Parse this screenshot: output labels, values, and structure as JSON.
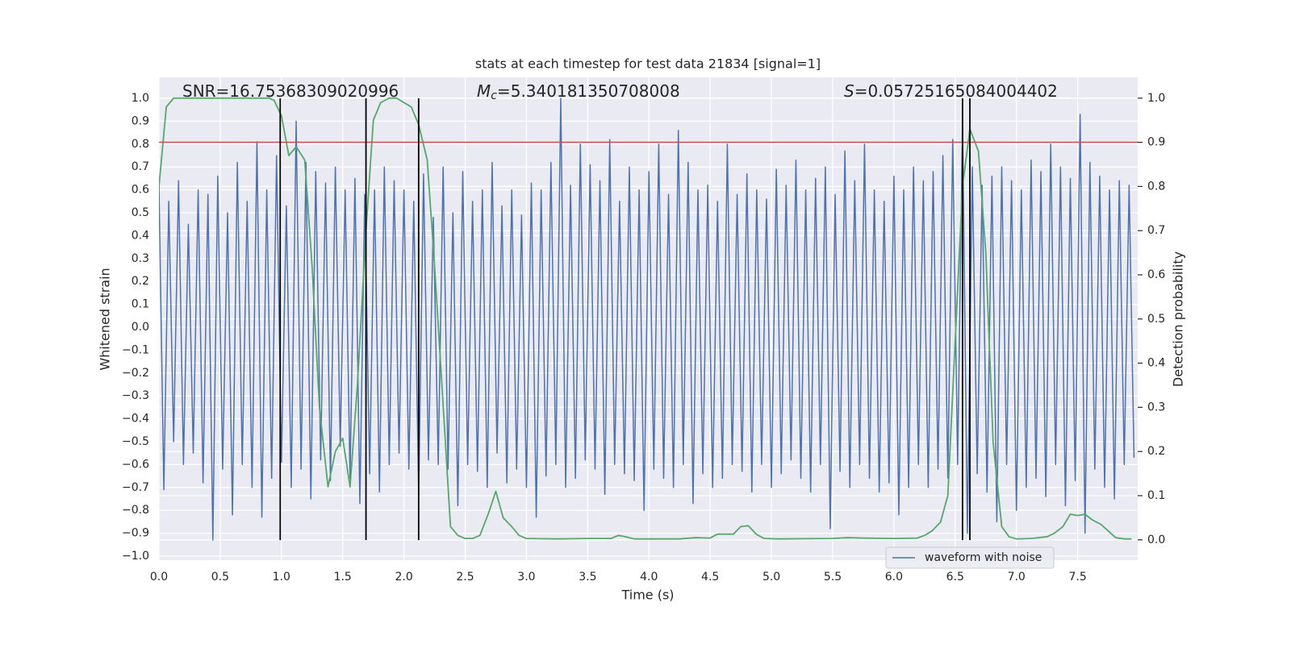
{
  "chart_data": {
    "type": "line",
    "title": "stats at each timestep for test data 21834 [signal=1]",
    "xlabel": "Time (s)",
    "ylabel": "Whitened strain",
    "y2label": "Detection probability",
    "xlim": [
      0,
      7.99
    ],
    "ylim": [
      -1.0176,
      1.0915
    ],
    "y2lim": [
      -0.046,
      1.047
    ],
    "xticks": [
      {
        "value": 0,
        "label": "0.0"
      },
      0.5,
      {
        "value": 1,
        "label": "1.0"
      },
      1.5,
      {
        "value": 2,
        "label": "2.0"
      },
      2.5,
      {
        "value": 3,
        "label": "3.0"
      },
      3.5,
      {
        "value": 4,
        "label": "4.0"
      },
      4.5,
      {
        "value": 5,
        "label": "5.0"
      },
      5.5,
      {
        "value": 6,
        "label": "6.0"
      },
      6.5,
      {
        "value": 7,
        "label": "7.0"
      },
      7.5
    ],
    "yticks": [
      {
        "value": -1,
        "label": "−1.0"
      },
      {
        "value": -0.9,
        "label": "−0.9"
      },
      {
        "value": -0.8,
        "label": "−0.8"
      },
      {
        "value": -0.7,
        "label": "−0.7"
      },
      {
        "value": -0.6,
        "label": "−0.6"
      },
      {
        "value": -0.5,
        "label": "−0.5"
      },
      {
        "value": -0.4,
        "label": "−0.4"
      },
      {
        "value": -0.3,
        "label": "−0.3"
      },
      {
        "value": -0.2,
        "label": "−0.2"
      },
      {
        "value": -0.1,
        "label": "−0.1"
      },
      {
        "value": 0,
        "label": "0.0"
      },
      0.1,
      0.2,
      0.3,
      0.4,
      0.5,
      0.6,
      0.7,
      0.8,
      0.9,
      {
        "value": 1,
        "label": "1.0"
      }
    ],
    "y2ticks": [
      {
        "value": 0,
        "label": "0.0"
      },
      0.1,
      0.2,
      0.3,
      0.4,
      0.5,
      0.6,
      0.7,
      0.8,
      0.9,
      {
        "value": 1,
        "label": "1.0"
      }
    ],
    "grid": true,
    "legend": "lower right",
    "annotations": [
      {
        "text": "SNR=16.75368309020996"
      },
      {
        "symbol": "M",
        "subscript": "c",
        "text": "=5.340181350708008"
      },
      {
        "symbol": "S",
        "text": "=0.05725165084004402"
      }
    ],
    "threshold": {
      "value": 0.9,
      "axis": "y2",
      "color": "#c44e52"
    },
    "vlines": {
      "x": [
        0.99,
        1.69,
        2.12,
        6.56,
        6.62
      ],
      "ymin": -0.93,
      "ymax": 1.0,
      "color": "#000000"
    },
    "series": [
      {
        "name": "waveform with noise",
        "color": "#4c72b0",
        "x": [
          0,
          0.04,
          0.08,
          0.12,
          0.16,
          0.2,
          0.24,
          0.28,
          0.32,
          0.36,
          0.4,
          0.44,
          0.48,
          0.52,
          0.56,
          0.6,
          0.64,
          0.68,
          0.72,
          0.76,
          0.8,
          0.84,
          0.88,
          0.92,
          0.96,
          1,
          1.04,
          1.08,
          1.12,
          1.16,
          1.2,
          1.24,
          1.28,
          1.32,
          1.36,
          1.4,
          1.44,
          1.48,
          1.52,
          1.56,
          1.6,
          1.64,
          1.68,
          1.72,
          1.76,
          1.8,
          1.84,
          1.88,
          1.92,
          1.96,
          2,
          2.04,
          2.08,
          2.12,
          2.16,
          2.2,
          2.24,
          2.28,
          2.32,
          2.36,
          2.4,
          2.44,
          2.48,
          2.52,
          2.56,
          2.6,
          2.64,
          2.68,
          2.72,
          2.76,
          2.8,
          2.84,
          2.88,
          2.92,
          2.96,
          3,
          3.04,
          3.08,
          3.12,
          3.16,
          3.2,
          3.24,
          3.28,
          3.32,
          3.36,
          3.4,
          3.44,
          3.48,
          3.52,
          3.56,
          3.6,
          3.64,
          3.68,
          3.72,
          3.76,
          3.8,
          3.84,
          3.88,
          3.92,
          3.96,
          4,
          4.04,
          4.08,
          4.12,
          4.16,
          4.2,
          4.24,
          4.28,
          4.32,
          4.36,
          4.4,
          4.44,
          4.48,
          4.52,
          4.56,
          4.6,
          4.64,
          4.68,
          4.72,
          4.76,
          4.8,
          4.84,
          4.88,
          4.92,
          4.96,
          5,
          5.04,
          5.08,
          5.12,
          5.16,
          5.2,
          5.24,
          5.28,
          5.32,
          5.36,
          5.4,
          5.44,
          5.48,
          5.52,
          5.56,
          5.6,
          5.64,
          5.68,
          5.72,
          5.76,
          5.8,
          5.84,
          5.88,
          5.92,
          5.96,
          6,
          6.04,
          6.08,
          6.12,
          6.16,
          6.2,
          6.24,
          6.28,
          6.32,
          6.36,
          6.4,
          6.44,
          6.48,
          6.52,
          6.56,
          6.6,
          6.64,
          6.68,
          6.72,
          6.76,
          6.8,
          6.84,
          6.88,
          6.92,
          6.96,
          7,
          7.04,
          7.08,
          7.12,
          7.16,
          7.2,
          7.24,
          7.28,
          7.32,
          7.36,
          7.4,
          7.44,
          7.48,
          7.52,
          7.56,
          7.6,
          7.64,
          7.68,
          7.72,
          7.76,
          7.8,
          7.84,
          7.88,
          7.92,
          7.96
        ],
        "values": [
          0.62,
          -0.71,
          0.55,
          -0.5,
          0.64,
          -0.6,
          0.45,
          -0.55,
          0.6,
          -0.68,
          0.58,
          -0.93,
          0.66,
          -0.62,
          0.5,
          -0.82,
          0.72,
          -0.6,
          0.55,
          -0.7,
          0.81,
          -0.83,
          0.6,
          -0.66,
          0.75,
          -0.59,
          0.53,
          -0.7,
          0.9,
          -0.62,
          0.72,
          -0.75,
          0.68,
          -0.58,
          0.63,
          -0.67,
          0.7,
          -0.52,
          0.6,
          -0.66,
          0.65,
          -0.77,
          0.58,
          -0.64,
          0.6,
          -0.72,
          0.7,
          -0.6,
          0.64,
          -0.55,
          0.6,
          -0.62,
          0.55,
          -0.73,
          0.67,
          -0.58,
          0.48,
          -0.6,
          0.7,
          -0.62,
          0.5,
          -0.78,
          0.68,
          -0.6,
          0.55,
          -0.63,
          0.6,
          -0.7,
          0.72,
          -0.55,
          0.53,
          -0.68,
          0.6,
          -0.62,
          0.49,
          -0.7,
          0.63,
          -0.83,
          0.6,
          -0.65,
          0.72,
          -0.6,
          1.0,
          -0.7,
          0.62,
          -0.66,
          0.8,
          -0.58,
          0.71,
          -0.62,
          0.64,
          -0.73,
          0.82,
          -0.6,
          0.55,
          -0.64,
          0.7,
          -0.67,
          0.6,
          -0.8,
          0.68,
          -0.62,
          0.8,
          -0.66,
          0.58,
          -0.7,
          0.86,
          -0.6,
          0.72,
          -0.77,
          0.6,
          -0.64,
          0.62,
          -0.7,
          0.55,
          -0.66,
          0.8,
          -0.6,
          0.58,
          -0.63,
          0.67,
          -0.72,
          0.6,
          -0.6,
          0.56,
          -0.7,
          0.69,
          -0.64,
          0.62,
          -0.58,
          0.73,
          -0.66,
          0.6,
          -0.72,
          0.65,
          -0.6,
          0.7,
          -0.88,
          0.58,
          -0.63,
          0.77,
          -0.7,
          0.64,
          -0.6,
          0.8,
          -0.66,
          0.6,
          -0.72,
          0.55,
          -0.68,
          0.66,
          -0.82,
          0.6,
          -0.7,
          0.7,
          -0.6,
          0.64,
          -0.7,
          0.68,
          -0.62,
          0.75,
          -0.66,
          0.82,
          -0.6,
          0.9,
          -0.9,
          0.7,
          -0.64,
          0.62,
          -0.72,
          0.66,
          -0.85,
          0.7,
          -0.6,
          0.64,
          -0.8,
          0.6,
          -0.7,
          0.73,
          -0.66,
          0.68,
          -0.74,
          0.8,
          -0.6,
          0.7,
          -0.78,
          0.65,
          -0.67,
          0.93,
          -0.9,
          0.72,
          -0.62,
          0.66,
          -0.7,
          0.6,
          -0.75,
          0.64,
          -0.6,
          0.62,
          -0.57
        ]
      },
      {
        "color": "#55a868",
        "axis": "y2",
        "x": [
          0,
          0.06,
          0.12,
          0.3,
          0.6,
          0.9,
          0.94,
          1,
          1.06,
          1.12,
          1.19,
          1.25,
          1.31,
          1.38,
          1.44,
          1.5,
          1.56,
          1.62,
          1.69,
          1.75,
          1.81,
          1.88,
          1.94,
          2,
          2.06,
          2.12,
          2.19,
          2.25,
          2.31,
          2.38,
          2.44,
          2.5,
          2.56,
          2.62,
          2.69,
          2.75,
          2.81,
          2.88,
          2.94,
          3,
          3.25,
          3.5,
          3.69,
          3.75,
          3.81,
          3.88,
          4,
          4.25,
          4.38,
          4.5,
          4.56,
          4.69,
          4.75,
          4.81,
          4.88,
          4.94,
          5.06,
          5.5,
          5.62,
          5.75,
          6,
          6.19,
          6.25,
          6.31,
          6.38,
          6.44,
          6.5,
          6.56,
          6.62,
          6.69,
          6.75,
          6.81,
          6.88,
          6.94,
          7,
          7.12,
          7.25,
          7.31,
          7.38,
          7.44,
          7.5,
          7.56,
          7.62,
          7.69,
          7.75,
          7.81,
          7.88,
          7.94
        ],
        "values": [
          0.8,
          0.98,
          1.0,
          1.0,
          1.0,
          1.0,
          0.995,
          0.96,
          0.87,
          0.89,
          0.86,
          0.62,
          0.3,
          0.12,
          0.2,
          0.23,
          0.12,
          0.35,
          0.7,
          0.95,
          0.99,
          1.0,
          1.0,
          0.99,
          0.98,
          0.94,
          0.86,
          0.62,
          0.35,
          0.03,
          0.01,
          0.003,
          0.003,
          0.01,
          0.06,
          0.11,
          0.05,
          0.03,
          0.01,
          0.003,
          0.002,
          0.003,
          0.003,
          0.01,
          0.007,
          0.002,
          0.002,
          0.002,
          0.005,
          0.004,
          0.013,
          0.013,
          0.03,
          0.032,
          0.012,
          0.003,
          0.002,
          0.003,
          0.005,
          0.004,
          0.003,
          0.004,
          0.01,
          0.02,
          0.04,
          0.1,
          0.45,
          0.8,
          0.93,
          0.88,
          0.65,
          0.22,
          0.03,
          0.007,
          0.002,
          0.003,
          0.007,
          0.015,
          0.03,
          0.058,
          0.055,
          0.058,
          0.045,
          0.035,
          0.02,
          0.005,
          0.002,
          0.002
        ]
      }
    ]
  }
}
